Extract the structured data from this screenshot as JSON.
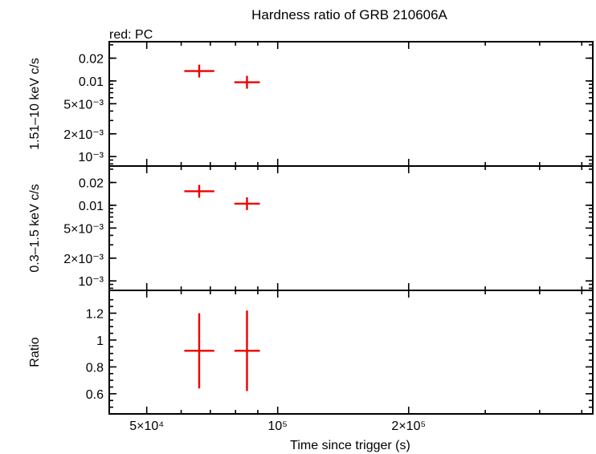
{
  "chart_data": {
    "type": "scatter",
    "title": "Hardness ratio of GRB 210606A",
    "note": "red: PC",
    "xlabel": "Time since trigger (s)",
    "xscale": "log",
    "xlim": [
      41000,
      530000
    ],
    "x_ticks": [
      {
        "value": 50000,
        "label": "5×10⁴"
      },
      {
        "value": 100000,
        "label": "10⁵"
      },
      {
        "value": 200000,
        "label": "2×10⁵"
      }
    ],
    "series_color": "#ee0000",
    "panels": [
      {
        "id": "hard",
        "ylabel": "1.51–10 keV c/s",
        "yscale": "log",
        "ylim": [
          0.00075,
          0.033
        ],
        "y_ticks": [
          {
            "value": 0.02,
            "label": "0.02"
          },
          {
            "value": 0.01,
            "label": "0.01"
          },
          {
            "value": 0.005,
            "label": "5×10⁻³"
          },
          {
            "value": 0.002,
            "label": "2×10⁻³"
          },
          {
            "value": 0.001,
            "label": "10⁻³"
          }
        ],
        "points": [
          {
            "x": 66000,
            "x_lo": 61000,
            "x_hi": 71500,
            "y": 0.0135,
            "y_lo": 0.0135,
            "y_hi": 0.0135
          },
          {
            "x": 85000,
            "x_lo": 79500,
            "x_hi": 91000,
            "y": 0.0096,
            "y_lo": 0.0096,
            "y_hi": 0.0096
          }
        ]
      },
      {
        "id": "soft",
        "ylabel": "0.3–1.5 keV c/s",
        "yscale": "log",
        "ylim": [
          0.00075,
          0.033
        ],
        "y_ticks": [
          {
            "value": 0.02,
            "label": "0.02"
          },
          {
            "value": 0.01,
            "label": "0.01"
          },
          {
            "value": 0.005,
            "label": "5×10⁻³"
          },
          {
            "value": 0.002,
            "label": "2×10⁻³"
          },
          {
            "value": 0.001,
            "label": "10⁻³"
          }
        ],
        "points": [
          {
            "x": 66000,
            "x_lo": 61000,
            "x_hi": 71500,
            "y": 0.0153,
            "y_lo": 0.0153,
            "y_hi": 0.0153
          },
          {
            "x": 85000,
            "x_lo": 79500,
            "x_hi": 91000,
            "y": 0.0105,
            "y_lo": 0.0105,
            "y_hi": 0.0105
          }
        ]
      },
      {
        "id": "ratio",
        "ylabel": "Ratio",
        "yscale": "linear",
        "ylim": [
          0.45,
          1.37
        ],
        "y_ticks": [
          {
            "value": 1.2,
            "label": "1.2"
          },
          {
            "value": 1.0,
            "label": "1"
          },
          {
            "value": 0.8,
            "label": "0.8"
          },
          {
            "value": 0.6,
            "label": "0.6"
          }
        ],
        "points": [
          {
            "x": 66000,
            "x_lo": 61000,
            "x_hi": 71500,
            "y": 0.92,
            "y_lo": 0.64,
            "y_hi": 1.2
          },
          {
            "x": 85000,
            "x_lo": 79500,
            "x_hi": 91000,
            "y": 0.92,
            "y_lo": 0.62,
            "y_hi": 1.22
          }
        ]
      }
    ]
  }
}
